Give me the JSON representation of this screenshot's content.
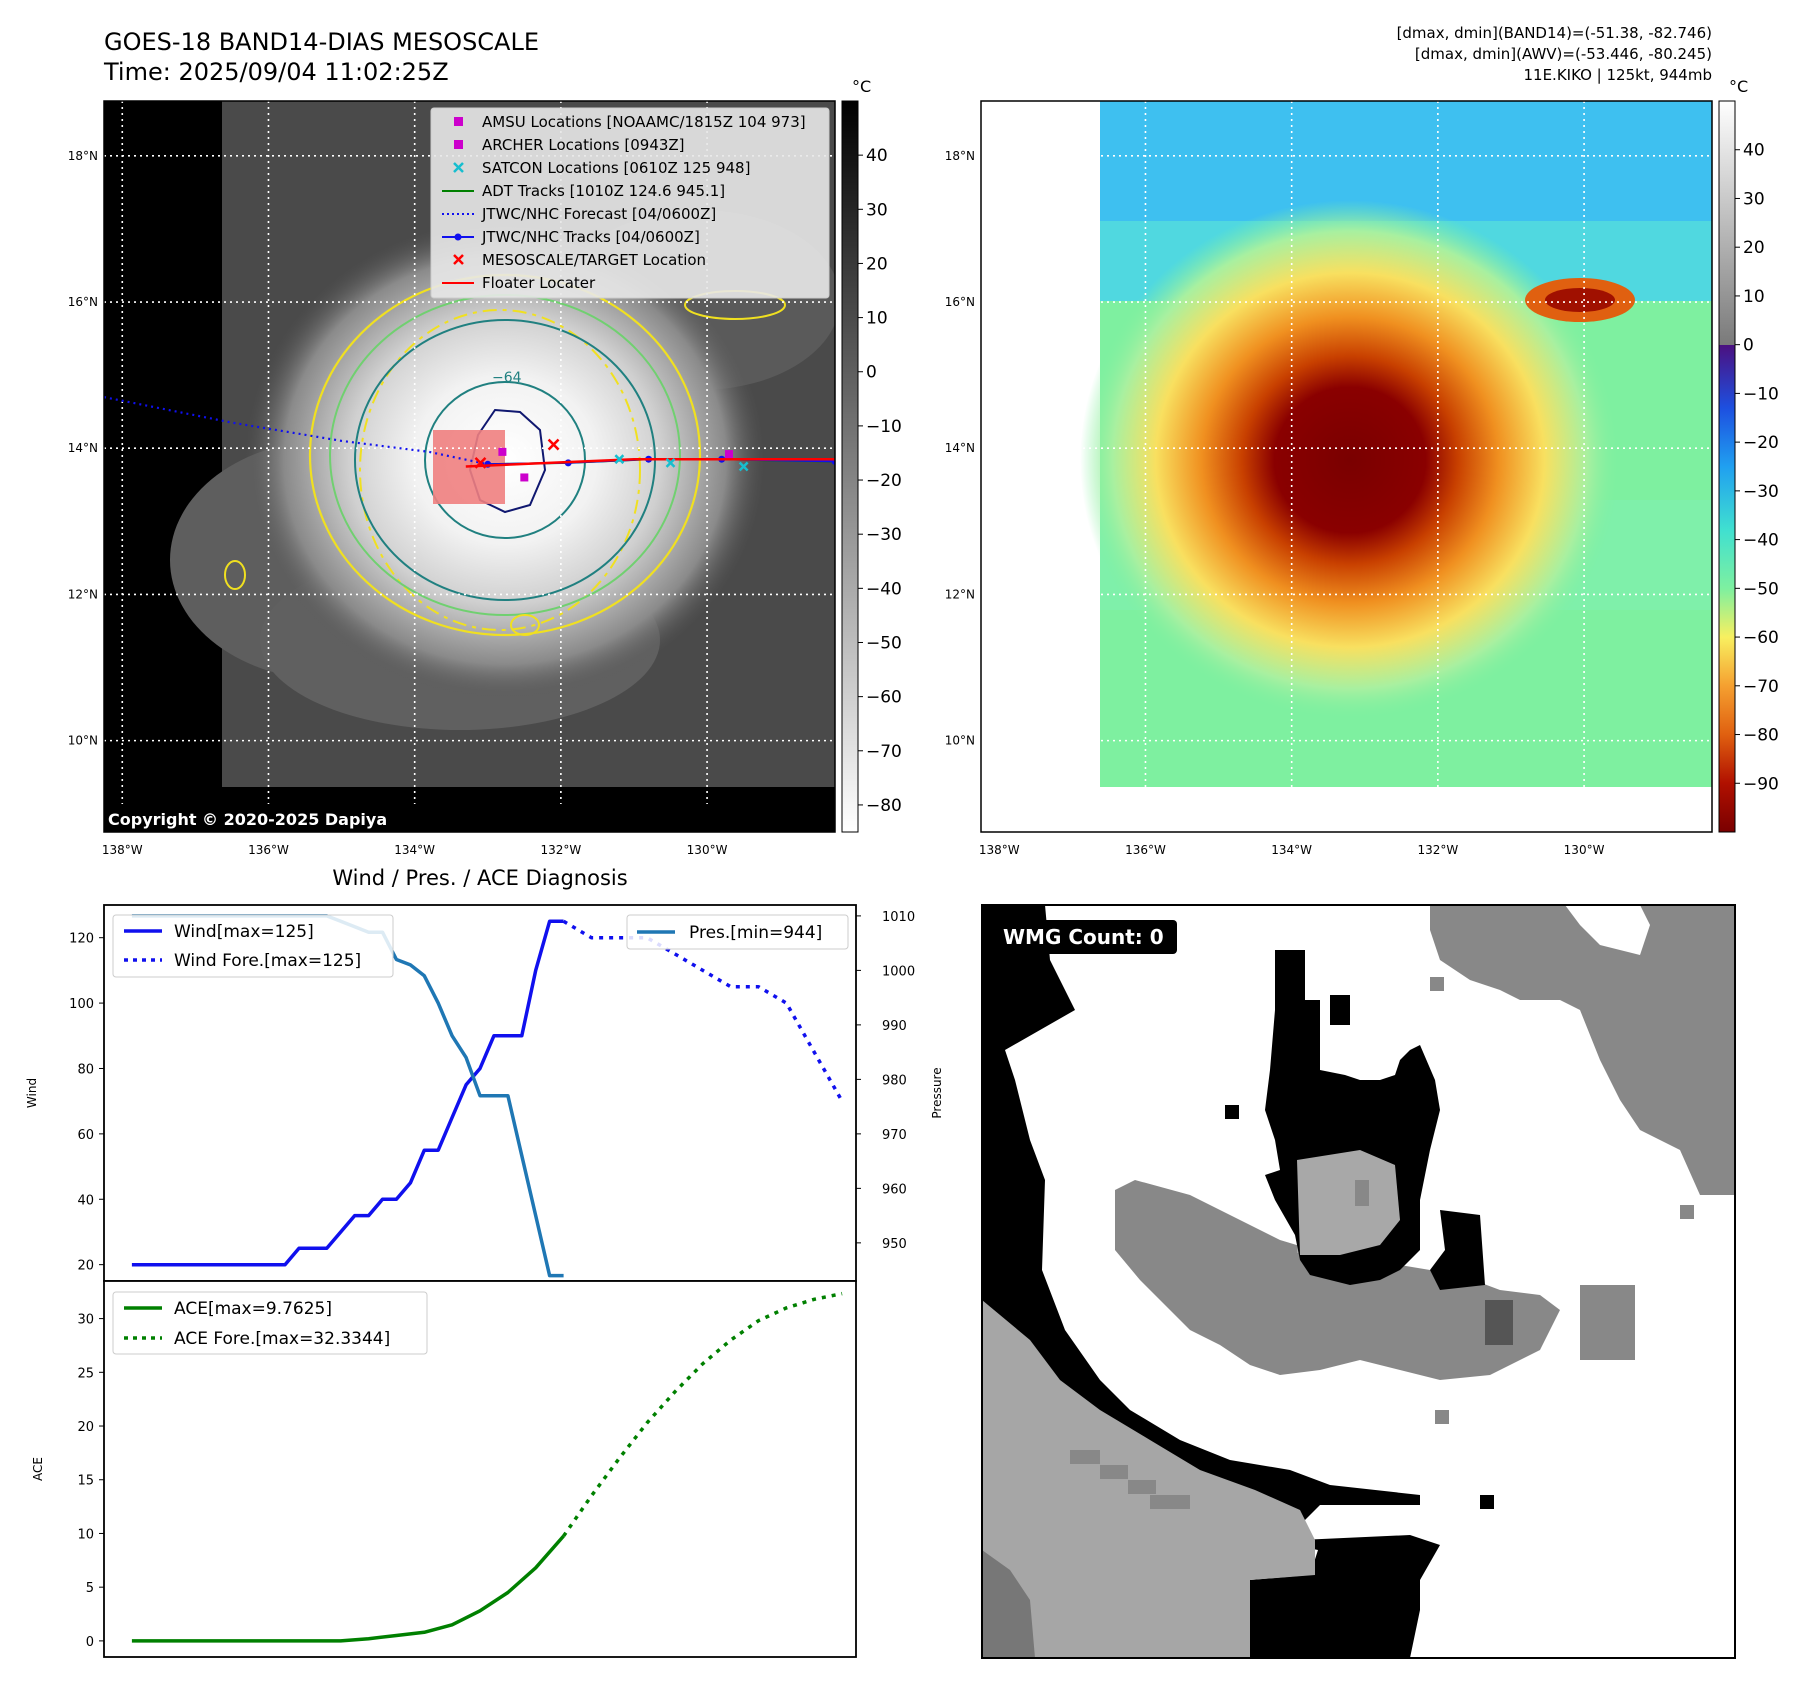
{
  "header": {
    "title_line1": "GOES-18 BAND14-DIAS MESOSCALE",
    "title_line2": "Time: 2025/09/04 11:02:25Z",
    "info_line1": "[dmax, dmin](BAND14)=(-51.38, -82.746)",
    "info_line2": "[dmax, dmin](AWV)=(-53.446, -80.245)",
    "info_line3": "11E.KIKO | 125kt, 944mb"
  },
  "colors": {
    "wind": "#1010ee",
    "pressure": "#1f77b4",
    "ace": "#008000",
    "adt": "#008000",
    "amsu": "#cc00cc",
    "satcon": "#17becf",
    "target": "#ff0000",
    "contour_yellow": "#f0e020",
    "contour_green": "#70d070",
    "contour_teal": "#208080",
    "contour_navy": "#101870"
  },
  "map_axes": {
    "lon_ticks": [
      "138°W",
      "136°W",
      "134°W",
      "132°W",
      "130°W"
    ],
    "lat_ticks": [
      "18°N",
      "16°N",
      "14°N",
      "12°N",
      "10°N"
    ],
    "lon_values": [
      -138,
      -136,
      -134,
      -132,
      -130
    ],
    "lat_values": [
      18,
      16,
      14,
      12,
      10
    ],
    "lon_range": [
      -138.25,
      -128.25
    ],
    "lat_range": [
      8.75,
      18.75
    ]
  },
  "ir_panel": {
    "colorbar_unit": "°C",
    "colorbar_ticks": [
      "40",
      "30",
      "20",
      "10",
      "0",
      "−10",
      "−20",
      "−30",
      "−40",
      "−50",
      "−60",
      "−70",
      "−80"
    ],
    "colorbar_values": [
      40,
      30,
      20,
      10,
      0,
      -10,
      -20,
      -30,
      -40,
      -50,
      -60,
      -70,
      -80
    ],
    "colorbar_range": [
      -85,
      50
    ],
    "contour_label": "−64",
    "copyright": "Copyright © 2020-2025 Dapiya",
    "legend": [
      {
        "label": "AMSU Locations [NOAAMC/1815Z 104 973]",
        "marker": "square",
        "color": "#cc00cc"
      },
      {
        "label": "ARCHER Locations [0943Z]",
        "marker": "square",
        "color": "#cc00cc"
      },
      {
        "label": "SATCON Locations [0610Z 125 948]",
        "marker": "x",
        "color": "#17becf"
      },
      {
        "label": "ADT Tracks [1010Z 124.6 945.1]",
        "marker": "line",
        "color": "#008000"
      },
      {
        "label": "JTWC/NHC Forecast [04/0600Z]",
        "marker": "dotted",
        "color": "#1010ee"
      },
      {
        "label": "JTWC/NHC Tracks [04/0600Z]",
        "marker": "line-dot",
        "color": "#1010ee"
      },
      {
        "label": "MESOSCALE/TARGET Location",
        "marker": "x",
        "color": "#ff0000"
      },
      {
        "label": "Floater Locater",
        "marker": "line",
        "color": "#ff0000"
      }
    ],
    "center": {
      "lon": -132.9,
      "lat": 13.8
    },
    "forecast_track": [
      {
        "lon": -138.25,
        "lat": 14.7
      },
      {
        "lon": -136.5,
        "lat": 14.35
      },
      {
        "lon": -135.0,
        "lat": 14.1
      },
      {
        "lon": -133.8,
        "lat": 13.95
      },
      {
        "lon": -133.0,
        "lat": 13.78
      }
    ],
    "best_track": [
      {
        "lon": -133.0,
        "lat": 13.78
      },
      {
        "lon": -131.9,
        "lat": 13.8
      },
      {
        "lon": -130.8,
        "lat": 13.85
      },
      {
        "lon": -129.8,
        "lat": 13.85
      },
      {
        "lon": -128.25,
        "lat": 13.82
      }
    ],
    "amsu_points": [
      {
        "lon": -132.5,
        "lat": 13.6
      },
      {
        "lon": -132.8,
        "lat": 13.95
      },
      {
        "lon": -129.7,
        "lat": 13.92
      }
    ]
  },
  "awv_panel": {
    "colorbar_unit": "°C",
    "colorbar_ticks": [
      "40",
      "30",
      "20",
      "10",
      "0",
      "−10",
      "−20",
      "−30",
      "−40",
      "−50",
      "−60",
      "−70",
      "−80",
      "−90"
    ],
    "colorbar_values": [
      40,
      30,
      20,
      10,
      0,
      -10,
      -20,
      -30,
      -40,
      -50,
      -60,
      -70,
      -80,
      -90
    ],
    "colorbar_range": [
      -100,
      50
    ]
  },
  "diagnosis": {
    "title": "Wind / Pres. / ACE Diagnosis",
    "wind_ylabel": "Wind",
    "pressure_ylabel": "Pressure",
    "ace_ylabel": "ACE",
    "wind_legend": "Wind[max=125]",
    "wind_fore_legend": "Wind Fore.[max=125]",
    "pres_legend": "Pres.[min=944]",
    "ace_legend": "ACE[max=9.7625]",
    "ace_fore_legend": "ACE Fore.[max=32.3344]"
  },
  "chart_data": [
    {
      "type": "line",
      "title": "Wind / Pres. / ACE Diagnosis",
      "ylabel": "Wind",
      "y2label": "Pressure",
      "xlim": [
        -1,
        53
      ],
      "ylim": [
        15,
        130
      ],
      "y2lim": [
        943,
        1012
      ],
      "yticks": [
        20,
        40,
        60,
        80,
        100,
        120
      ],
      "y2ticks": [
        950,
        960,
        970,
        980,
        990,
        1000,
        1010
      ],
      "series": [
        {
          "name": "Wind[max=125]",
          "axis": "left",
          "style": "solid",
          "x": [
            1,
            2,
            3,
            4,
            5,
            6,
            7,
            8,
            9,
            10,
            11,
            12,
            13,
            14,
            15,
            16,
            17,
            18,
            19,
            20,
            21,
            22,
            23,
            24,
            25,
            26,
            27,
            28,
            29,
            30,
            31,
            32
          ],
          "y": [
            20,
            20,
            20,
            20,
            20,
            20,
            20,
            20,
            20,
            20,
            20,
            20,
            25,
            25,
            25,
            30,
            35,
            35,
            40,
            40,
            45,
            55,
            55,
            65,
            75,
            80,
            90,
            90,
            90,
            110,
            125,
            125
          ]
        },
        {
          "name": "Wind Fore.[max=125]",
          "axis": "left",
          "style": "dotted",
          "x": [
            32,
            34,
            36,
            38,
            40,
            42,
            44,
            46,
            48,
            50,
            52
          ],
          "y": [
            125,
            120,
            120,
            120,
            115,
            110,
            105,
            105,
            100,
            85,
            70
          ]
        },
        {
          "name": "Pres.[min=944]",
          "axis": "right",
          "style": "solid",
          "x": [
            1,
            2,
            3,
            4,
            5,
            6,
            7,
            8,
            9,
            10,
            11,
            12,
            13,
            14,
            15,
            16,
            17,
            18,
            19,
            20,
            21,
            22,
            23,
            24,
            25,
            26,
            27,
            28,
            29,
            30,
            31,
            32
          ],
          "y": [
            1010,
            1010,
            1010,
            1010,
            1010,
            1010,
            1010,
            1010,
            1010,
            1010,
            1010,
            1010,
            1010,
            1010,
            1010,
            1009,
            1008,
            1007,
            1007,
            1002,
            1001,
            999,
            994,
            988,
            984,
            977,
            977,
            977,
            966,
            955,
            944,
            944
          ]
        }
      ]
    },
    {
      "type": "line",
      "ylabel": "ACE",
      "xlim": [
        -1,
        53
      ],
      "ylim": [
        -1.5,
        33.5
      ],
      "yticks": [
        0,
        5,
        10,
        15,
        20,
        25,
        30
      ],
      "series": [
        {
          "name": "ACE[max=9.7625]",
          "style": "solid",
          "x": [
            1,
            4,
            8,
            12,
            16,
            18,
            20,
            22,
            24,
            26,
            28,
            30,
            32
          ],
          "y": [
            0,
            0,
            0,
            0,
            0,
            0.2,
            0.5,
            0.8,
            1.5,
            2.8,
            4.5,
            6.8,
            9.76
          ]
        },
        {
          "name": "ACE Fore.[max=32.3344]",
          "style": "dotted",
          "x": [
            32,
            34,
            36,
            38,
            40,
            42,
            44,
            46,
            48,
            50,
            52
          ],
          "y": [
            9.76,
            13.5,
            17.0,
            20.3,
            23.2,
            25.8,
            28.0,
            29.8,
            31.0,
            31.8,
            32.33
          ]
        }
      ]
    }
  ],
  "wmg_panel": {
    "label": "WMG Count: 0"
  }
}
